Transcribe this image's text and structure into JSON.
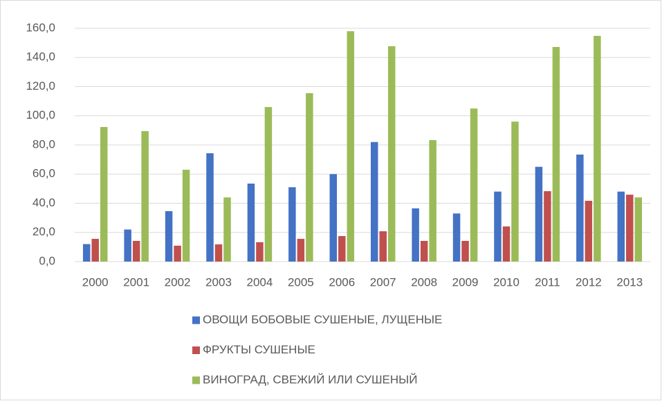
{
  "chart_data": {
    "type": "bar",
    "categories": [
      "2000",
      "2001",
      "2002",
      "2003",
      "2004",
      "2005",
      "2006",
      "2007",
      "2008",
      "2009",
      "2010",
      "2011",
      "2012",
      "2013"
    ],
    "series": [
      {
        "name": "ОВОЩИ БОБОВЫЕ СУШЕНЫЕ, ЛУЩЕНЫЕ",
        "color": "#4472c4",
        "values": [
          12,
          22,
          34.6,
          74.3,
          53.5,
          51,
          60,
          82,
          36.5,
          33,
          48,
          65,
          73.4,
          48
        ]
      },
      {
        "name": "ФРУКТЫ СУШЕНЫЕ",
        "color": "#c0504d",
        "values": [
          15.6,
          14.2,
          10.9,
          11.8,
          13.3,
          15.6,
          17.5,
          20.8,
          14.2,
          14.2,
          24.1,
          48.3,
          41.7,
          45.9
        ]
      },
      {
        "name": "ВИНОГРАД, СВЕЖИЙ ИЛИ СУШЕНЫЙ",
        "color": "#9bbb59",
        "values": [
          92.3,
          89.5,
          63,
          44,
          106,
          115.5,
          158,
          147.7,
          83.3,
          105,
          96,
          147.2,
          154.8,
          44
        ]
      }
    ],
    "ylim": [
      0,
      160
    ],
    "yticks": [
      {
        "value": 0,
        "label": "0,0"
      },
      {
        "value": 20,
        "label": "20,0"
      },
      {
        "value": 40,
        "label": "40,0"
      },
      {
        "value": 60,
        "label": "60,0"
      },
      {
        "value": 80,
        "label": "80,0"
      },
      {
        "value": 100,
        "label": "100,0"
      },
      {
        "value": 120,
        "label": "120,0"
      },
      {
        "value": 140,
        "label": "140,0"
      },
      {
        "value": 160,
        "label": "160,0"
      }
    ],
    "grid": true,
    "legend": "bottom"
  }
}
